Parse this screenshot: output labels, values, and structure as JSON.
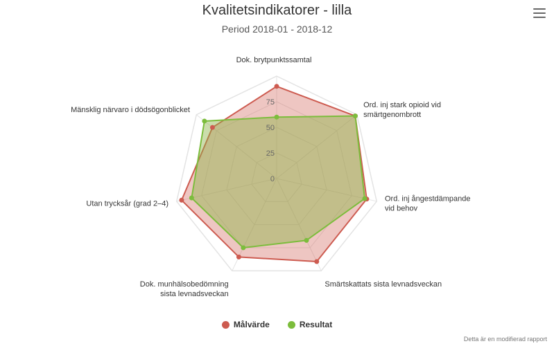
{
  "chart_data": {
    "type": "radar",
    "title": "Kvalitetsindikatorer - lilla",
    "subtitle": "Period 2018-01 - 2018-12",
    "axes": [
      [
        "Dok. brytpunktssamtal"
      ],
      [
        "Ord. inj stark opioid vid",
        "smärtgenombrott"
      ],
      [
        "Ord. inj ångestdämpande",
        "vid behov"
      ],
      [
        "Smärtskattats sista levnadsveckan"
      ],
      [
        "Dok. munhälsobedömning",
        "sista levnadsveckan"
      ],
      [
        "Utan trycksår (grad 2–4)"
      ],
      [
        "Mänsklig närvaro i dödsögonblicket"
      ]
    ],
    "range": [
      0,
      100
    ],
    "ticks": [
      0,
      25,
      50,
      75
    ],
    "series": [
      {
        "name": "Målvärde",
        "color": "#cd5b50",
        "fill": "rgba(205,91,80,0.35)",
        "values": [
          90,
          98,
          90,
          90,
          85,
          95,
          80
        ]
      },
      {
        "name": "Resultat",
        "color": "#7cbd3c",
        "fill": "rgba(140,180,70,0.45)",
        "values": [
          60,
          98,
          88,
          67,
          75,
          85,
          90
        ]
      }
    ]
  },
  "menu_icon": "hamburger-menu-icon",
  "footer": "Detta är en modifierad rapport"
}
